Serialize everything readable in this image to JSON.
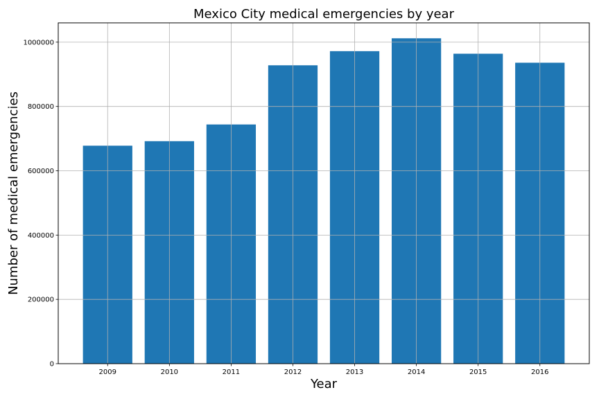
{
  "chart_data": {
    "type": "bar",
    "title": "Mexico City medical emergencies by year",
    "xlabel": "Year",
    "ylabel": "Number of medical emergencies",
    "categories": [
      "2009",
      "2010",
      "2011",
      "2012",
      "2013",
      "2014",
      "2015",
      "2016"
    ],
    "values": [
      678000,
      692000,
      744000,
      928000,
      972000,
      1012000,
      964000,
      936000
    ],
    "ylim": [
      0,
      1060000
    ],
    "yticks": [
      0,
      200000,
      400000,
      600000,
      800000,
      1000000
    ],
    "ytick_labels": [
      "0",
      "200000",
      "400000",
      "600000",
      "800000",
      "1000000"
    ],
    "grid": true,
    "bar_color": "#1f77b4",
    "grid_color": "#b0b0b0"
  }
}
